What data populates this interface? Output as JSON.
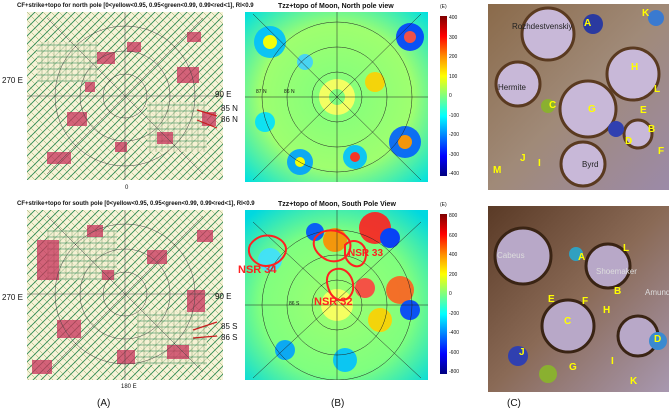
{
  "colors": {
    "strike_green": "#2e8b57",
    "strike_red": "#c8325a",
    "map_bg": "#f7f3d8",
    "colorbar": [
      "#7f0000",
      "#ff0000",
      "#ff8c00",
      "#ffff00",
      "#7fff7f",
      "#00ffff",
      "#0080ff",
      "#0000ff",
      "#00007f"
    ],
    "label_yellow": "#ffff00",
    "nsr_red": "#ff2020"
  },
  "panel_a": {
    "north_title": "CF+strike+topo for north pole [0<yellow<0.95, 0.95<green<0.99, 0.99<red<1], RI<0.9",
    "north_left": "270 E",
    "north_right": "90 E",
    "north_lat1": "85 N",
    "north_lat2": "86 N",
    "north_bottom": "0",
    "south_title": "CF+strike+topo for south pole [0<yellow<0.95, 0.95<green<0.99, 0.99<red<1], RI<0.9",
    "south_left": "270 E",
    "south_right": "90 E",
    "south_lat1": "85 S",
    "south_lat2": "86 S",
    "south_bottom": "180 E",
    "caption": "(A)"
  },
  "panel_b": {
    "north_title": "Tzz+topo of Moon, North pole view",
    "north_inner1": "87 N",
    "north_inner2": "86 N",
    "north_cb_unit": "(E)",
    "north_cb_ticks": [
      "400",
      "300",
      "200",
      "100",
      "0",
      "-100",
      "-200",
      "-300",
      "-400"
    ],
    "south_title": "Tzz+topo of Moon, South Pole View",
    "south_inner": "86 S",
    "south_cb_unit": "(E)",
    "south_cb_ticks": [
      "800",
      "600",
      "400",
      "200",
      "0",
      "-200",
      "-400",
      "-600",
      "-800"
    ],
    "nsr_labels": [
      "NSR 34",
      "NSR 33",
      "NSR 32"
    ],
    "caption": "(B)"
  },
  "panel_c": {
    "north_names": [
      "Rozhdestvenskiy",
      "Hermite",
      "Byrd"
    ],
    "north_letters": [
      "A",
      "B",
      "C",
      "D",
      "E",
      "F",
      "G",
      "H",
      "I",
      "J",
      "K",
      "L",
      "M"
    ],
    "south_names": [
      "Cabeus",
      "Shoemaker",
      "Amund"
    ],
    "south_letters": [
      "A",
      "B",
      "C",
      "D",
      "E",
      "F",
      "G",
      "H",
      "I",
      "J",
      "K",
      "L"
    ],
    "caption": "(C)"
  }
}
